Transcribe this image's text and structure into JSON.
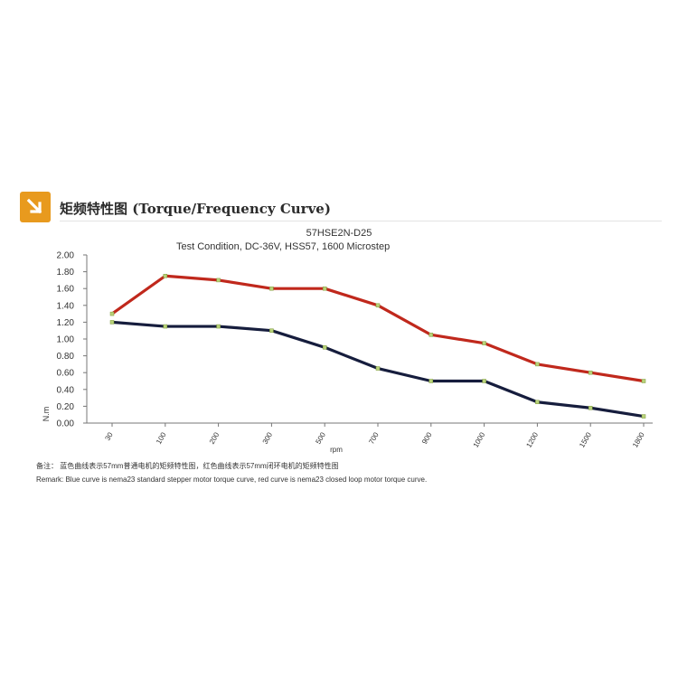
{
  "header": {
    "title": "矩频特性图 (Torque/Frequency Curve)",
    "icon": "arrow-down-right-icon",
    "icon_color": "#e89a1e"
  },
  "chart_data": {
    "type": "line",
    "title": "57HSE2N-D25",
    "subtitle": "Test Condition,    DC-36V,    HSS57,    1600 Microstep",
    "xlabel": "rpm",
    "ylabel": "N.m",
    "categories": [
      "30",
      "100",
      "200",
      "300",
      "500",
      "700",
      "900",
      "1000",
      "1200",
      "1500",
      "1800"
    ],
    "ylim": [
      0,
      2
    ],
    "yticks": [
      "0.00",
      "0.20",
      "0.40",
      "0.60",
      "0.80",
      "1.00",
      "1.20",
      "1.40",
      "1.60",
      "1.80",
      "2.00"
    ],
    "grid": false,
    "series": [
      {
        "color": "#c0281c",
        "values": [
          1.3,
          1.75,
          1.7,
          1.6,
          1.6,
          1.4,
          1.05,
          0.95,
          0.7,
          0.6,
          0.5
        ]
      },
      {
        "color": "#161d3d",
        "values": [
          1.2,
          1.15,
          1.15,
          1.1,
          0.9,
          0.65,
          0.5,
          0.5,
          0.25,
          0.18,
          0.08
        ]
      }
    ]
  },
  "remarks": {
    "cn": "备注：  蓝色曲线表示57mm普通电机的矩频特性图，红色曲线表示57mm闭环电机的矩频特性图",
    "en": "Remark: Blue curve is nema23 standard stepper motor torque curve, red curve is nema23 closed loop motor torque curve."
  }
}
